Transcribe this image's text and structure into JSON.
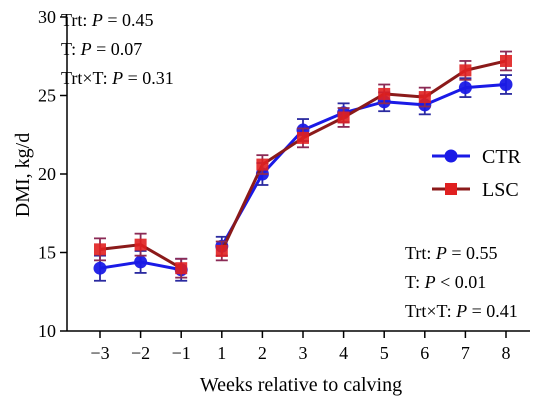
{
  "chart_data": {
    "type": "line",
    "title": "",
    "xlabel": "Weeks relative to calving",
    "ylabel": "DMI, kg/d",
    "categories": [
      "−3",
      "−2",
      "−1",
      "1",
      "2",
      "3",
      "4",
      "5",
      "6",
      "7",
      "8"
    ],
    "ylim": [
      10,
      30
    ],
    "yticks": [
      10,
      15,
      20,
      25,
      30
    ],
    "grid": false,
    "legend_position": "right",
    "segments": [
      [
        0,
        2
      ],
      [
        3,
        10
      ]
    ],
    "series": [
      {
        "name": "CTR",
        "color": "#1a1ae6",
        "marker": "circle",
        "values": [
          14.0,
          14.4,
          13.9,
          15.4,
          20.0,
          22.8,
          23.9,
          24.6,
          24.4,
          25.5,
          25.7
        ],
        "errors": [
          0.8,
          0.7,
          0.7,
          0.6,
          0.7,
          0.7,
          0.6,
          0.6,
          0.6,
          0.6,
          0.6
        ]
      },
      {
        "name": "LSC",
        "color": "#e02020",
        "marker": "square",
        "values": [
          15.2,
          15.5,
          14.0,
          15.1,
          20.6,
          22.3,
          23.6,
          25.1,
          24.9,
          26.6,
          27.2
        ],
        "errors": [
          0.7,
          0.7,
          0.6,
          0.6,
          0.6,
          0.6,
          0.6,
          0.6,
          0.6,
          0.6,
          0.6
        ]
      }
    ],
    "annotations": {
      "prepartum": [
        {
          "label": "Trt: ",
          "p": "P",
          "rest": " = 0.45"
        },
        {
          "label": "T: ",
          "p": "P",
          "rest": " = 0.07"
        },
        {
          "label": "Trt×T: ",
          "p": "P",
          "rest": " = 0.31"
        }
      ],
      "postpartum": [
        {
          "label": "Trt: ",
          "p": "P",
          "rest": " = 0.55"
        },
        {
          "label": "T: ",
          "p": "P",
          "rest": " < 0.01"
        },
        {
          "label": "Trt×T: ",
          "p": "P",
          "rest": " = 0.41"
        }
      ]
    }
  }
}
